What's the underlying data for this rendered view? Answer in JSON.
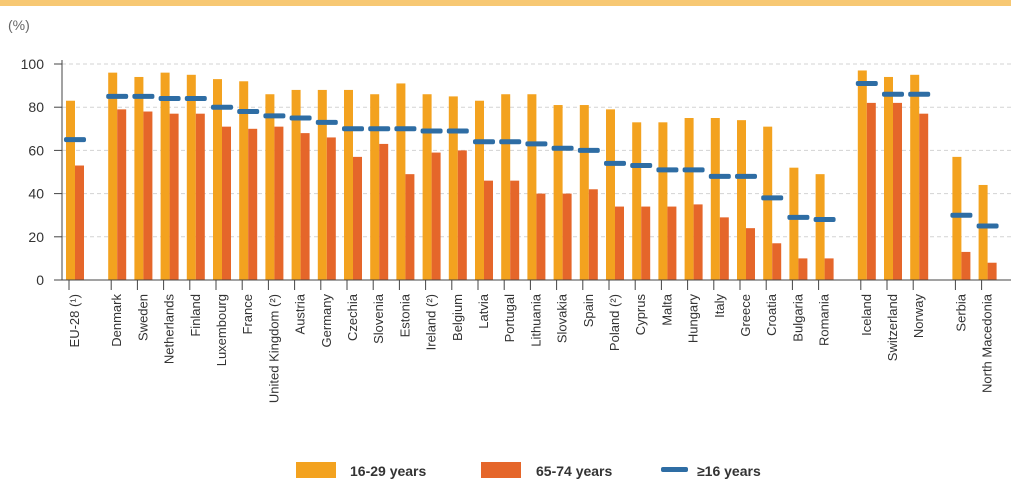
{
  "chart_data": {
    "type": "bar",
    "unit_label": "(%)",
    "ylim": [
      0,
      100
    ],
    "y_ticks": [
      0,
      20,
      40,
      60,
      80,
      100
    ],
    "grid": true,
    "legend_position": "bottom",
    "colors": {
      "young": "#F3A21F",
      "old": "#E5662A",
      "all": "#2E6DA4",
      "grid": "#d3d3d3",
      "axis": "#444444"
    },
    "categories": [
      "EU-28 (¹)",
      "Denmark",
      "Sweden",
      "Netherlands",
      "Finland",
      "Luxembourg",
      "France",
      "United Kingdom (²)",
      "Austria",
      "Germany",
      "Czechia",
      "Slovenia",
      "Estonia",
      "Ireland (²)",
      "Belgium",
      "Latvia",
      "Portugal",
      "Lithuania",
      "Slovakia",
      "Spain",
      "Poland (²)",
      "Cyprus",
      "Malta",
      "Hungary",
      "Italy",
      "Greece",
      "Croatia",
      "Bulgaria",
      "Romania",
      "Iceland",
      "Switzerland",
      "Norway",
      "Serbia",
      "North Macedonia"
    ],
    "group_breaks_after": [
      0,
      28,
      31
    ],
    "series": [
      {
        "name": "16-29 years",
        "kind": "bar",
        "values": [
          83,
          96,
          94,
          96,
          95,
          93,
          92,
          86,
          88,
          88,
          88,
          86,
          91,
          86,
          85,
          83,
          86,
          86,
          81,
          81,
          79,
          73,
          73,
          75,
          75,
          74,
          71,
          52,
          49,
          97,
          94,
          95,
          57,
          44
        ]
      },
      {
        "name": "65-74 years",
        "kind": "bar",
        "values": [
          53,
          79,
          78,
          77,
          77,
          71,
          70,
          71,
          68,
          66,
          57,
          63,
          49,
          59,
          60,
          46,
          46,
          40,
          40,
          42,
          34,
          34,
          34,
          35,
          29,
          24,
          17,
          10,
          10,
          82,
          82,
          77,
          13,
          8
        ]
      },
      {
        "name": "≥16 years",
        "kind": "marker",
        "values": [
          65,
          85,
          85,
          84,
          84,
          80,
          78,
          76,
          75,
          73,
          70,
          70,
          70,
          69,
          69,
          64,
          64,
          63,
          61,
          60,
          54,
          53,
          51,
          51,
          48,
          48,
          38,
          29,
          28,
          91,
          86,
          86,
          30,
          25
        ]
      }
    ]
  }
}
